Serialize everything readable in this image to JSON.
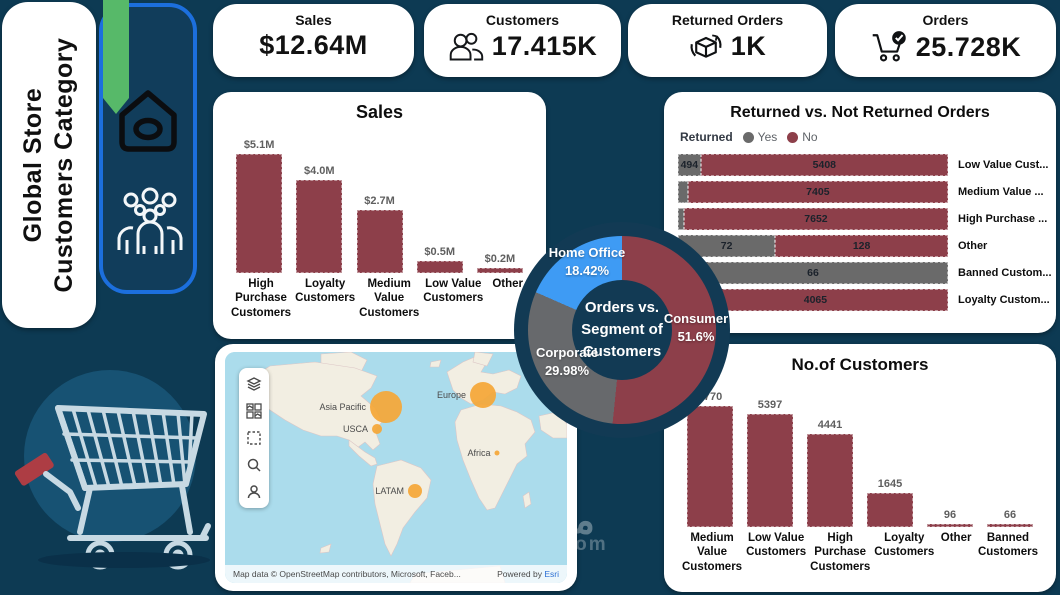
{
  "title": "Global Store Customers Category",
  "theme": {
    "background": "#0d3a53",
    "panel": "#ffffff",
    "maroon": "#8d3f4a",
    "gray": "#6a6a6a",
    "blue_slice": "#3e9bf4",
    "green_ribbon": "#57b969",
    "blue_border": "#1c6fdd",
    "bubble_orange": "#f5a636",
    "map_ocean": "#abdcec",
    "map_land": "#f2eee2"
  },
  "sidebar": {
    "title_line1": "Global Store",
    "title_line2": "Customers Category",
    "icons": [
      "home-icon",
      "customers-group-icon",
      "shopping-cart-illustration"
    ]
  },
  "kpis": [
    {
      "label": "Sales",
      "value": "$12.64M",
      "icon": ""
    },
    {
      "label": "Customers",
      "value": "17.415K",
      "icon": "customers-icon"
    },
    {
      "label": "Returned Orders",
      "value": "1K",
      "icon": "returned-box-icon"
    },
    {
      "label": "Orders",
      "value": "25.728K",
      "icon": "cart-check-icon"
    }
  ],
  "chart_data": [
    {
      "id": "sales-by-category",
      "type": "bar",
      "title": "Sales",
      "categories": [
        "High Purchase Customers",
        "Loyalty Customers",
        "Medium Value Customers",
        "Low Value Customers",
        "Other"
      ],
      "values": [
        5.1,
        4.0,
        2.7,
        0.5,
        0.2
      ],
      "value_labels": [
        "$5.1M",
        "$4.0M",
        "$2.7M",
        "$0.5M",
        "$0.2M"
      ],
      "unit": "$M",
      "ylim": [
        0,
        5.5
      ],
      "bar_color": "#8d3f4a",
      "grid": false
    },
    {
      "id": "returned-vs-not-returned",
      "type": "bar",
      "subtype": "horizontal-100pct-stacked",
      "title": "Returned vs. Not Returned Orders",
      "legend": {
        "title": "Returned",
        "items": [
          {
            "label": "Yes",
            "color": "#6a6a6a"
          },
          {
            "label": "No",
            "color": "#8d3f4a"
          }
        ]
      },
      "rows": [
        {
          "category": "Low Value Cust...",
          "returned_label": "494",
          "not_returned_label": "5408",
          "returned": 494,
          "not_returned": 5408,
          "returned_pct": 8.4
        },
        {
          "category": "Medium Value ...",
          "returned_label": "",
          "not_returned_label": "7405",
          "returned": null,
          "not_returned": 7405,
          "returned_pct": 3.6
        },
        {
          "category": "High Purchase ...",
          "returned_label": "",
          "not_returned_label": "7652",
          "returned": null,
          "not_returned": 7652,
          "returned_pct": 2.2
        },
        {
          "category": "Other",
          "returned_label": "72",
          "not_returned_label": "128",
          "returned": 72,
          "not_returned": 128,
          "returned_pct": 36
        },
        {
          "category": "Banned Custom...",
          "returned_label": "66",
          "not_returned_label": "",
          "returned": 66,
          "not_returned": null,
          "returned_pct": 100
        },
        {
          "category": "Loyalty Custom...",
          "returned_label": "",
          "not_returned_label": "4065",
          "returned": null,
          "not_returned": 4065,
          "returned_pct": 1.8
        }
      ]
    },
    {
      "id": "orders-by-segment",
      "type": "donut",
      "center_line1": "Orders vs.",
      "center_line2": "Segment of",
      "center_line3": "Customers",
      "slices": [
        {
          "label": "Consumer",
          "pct": 51.6,
          "pct_label": "51.6%",
          "color": "#8d3f4a"
        },
        {
          "label": "Corporate",
          "pct": 29.98,
          "pct_label": "29.98%",
          "color": "#67696c"
        },
        {
          "label": "Home Office",
          "pct": 18.42,
          "pct_label": "18.42%",
          "color": "#3e9bf4"
        }
      ]
    },
    {
      "id": "customers-by-category",
      "type": "bar",
      "title": "No.of Customers",
      "categories": [
        "Medium Value Customers",
        "Low Value Customers",
        "High Purchase Customers",
        "Loyalty Customers",
        "Other",
        "Banned Customers"
      ],
      "values": [
        5770,
        5397,
        4441,
        1645,
        96,
        66
      ],
      "value_labels": [
        "5770",
        "5397",
        "4441",
        "1645",
        "96",
        "66"
      ],
      "ylim": [
        0,
        6300
      ],
      "bar_color": "#8d3f4a",
      "grid": false
    },
    {
      "id": "orders-map",
      "type": "map",
      "bubbles": [
        {
          "label": "Asia Pacific",
          "x": 161,
          "y": 55,
          "r": 16
        },
        {
          "label": "USCA",
          "x": 152,
          "y": 77,
          "r": 5
        },
        {
          "label": "Europe",
          "x": 258,
          "y": 43,
          "r": 13
        },
        {
          "label": "Africa",
          "x": 272,
          "y": 101,
          "r": 2.5
        },
        {
          "label": "LATAM",
          "x": 190,
          "y": 139,
          "r": 7
        }
      ],
      "attribution": "Map data © OpenStreetMap contributors, Microsoft, Faceb...",
      "powered_by": "Powered by",
      "powered_by_link": "Esri"
    }
  ],
  "watermark": {
    "arabic": "مستقل",
    "latin": "mostaql.com"
  }
}
